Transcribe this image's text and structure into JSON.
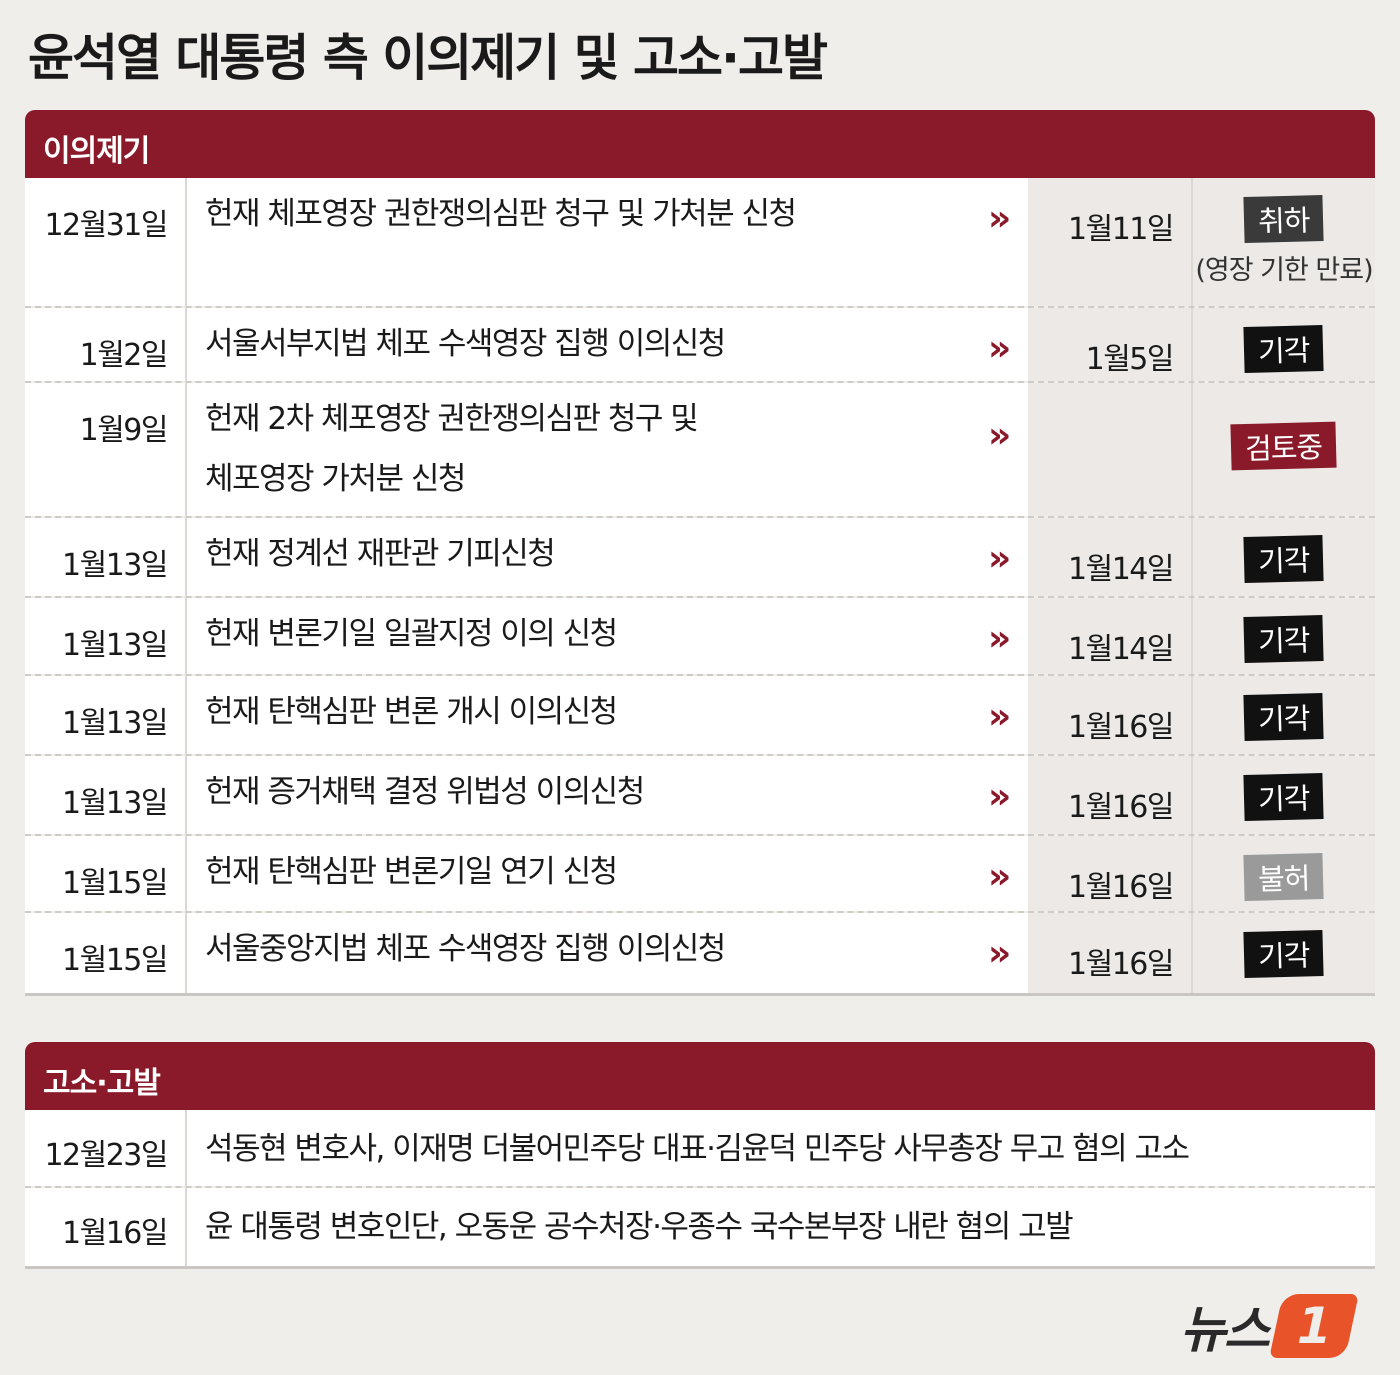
{
  "title": "윤석열 대통령 측 이의제기 및 고소·고발",
  "colors": {
    "header": "#8a1a2a",
    "badge_dismissed": "#111111",
    "badge_withdrawn": "#3a3a3a",
    "badge_review": "#8a1a2a",
    "badge_denied": "#9a9a9a",
    "logo": "#e8532a"
  },
  "objections": {
    "header": "이의제기",
    "arrow": "»",
    "rows": [
      {
        "date": "12월31일",
        "desc": [
          "헌재 체포영장 권한쟁의심판 청구 및 가처분 신청"
        ],
        "result_date": "1월11일",
        "status": "취하",
        "status_type": "withdrawn",
        "note": "(영장 기한 만료)"
      },
      {
        "date": "1월2일",
        "desc": [
          "서울서부지법 체포 수색영장 집행 이의신청"
        ],
        "result_date": "1월5일",
        "status": "기각",
        "status_type": "dismissed"
      },
      {
        "date": "1월9일",
        "desc": [
          "헌재 2차 체포영장 권한쟁의심판 청구 및",
          "체포영장 가처분 신청"
        ],
        "result_date": "",
        "status": "검토중",
        "status_type": "review"
      },
      {
        "date": "1월13일",
        "desc": [
          "헌재 정계선 재판관 기피신청"
        ],
        "result_date": "1월14일",
        "status": "기각",
        "status_type": "dismissed"
      },
      {
        "date": "1월13일",
        "desc": [
          "헌재 변론기일 일괄지정 이의 신청"
        ],
        "result_date": "1월14일",
        "status": "기각",
        "status_type": "dismissed"
      },
      {
        "date": "1월13일",
        "desc": [
          "헌재 탄핵심판 변론 개시 이의신청"
        ],
        "result_date": "1월16일",
        "status": "기각",
        "status_type": "dismissed"
      },
      {
        "date": "1월13일",
        "desc": [
          "헌재 증거채택 결정 위법성 이의신청"
        ],
        "result_date": "1월16일",
        "status": "기각",
        "status_type": "dismissed"
      },
      {
        "date": "1월15일",
        "desc": [
          "헌재 탄핵심판 변론기일 연기 신청"
        ],
        "result_date": "1월16일",
        "status": "불허",
        "status_type": "denied"
      },
      {
        "date": "1월15일",
        "desc": [
          "서울중앙지법 체포 수색영장 집행 이의신청"
        ],
        "result_date": "1월16일",
        "status": "기각",
        "status_type": "dismissed"
      }
    ]
  },
  "complaints": {
    "header": "고소·고발",
    "rows": [
      {
        "date": "12월23일",
        "desc": "석동현 변호사, 이재명 더불어민주당 대표·김윤덕 민주당 사무총장 무고 혐의 고소"
      },
      {
        "date": "1월16일",
        "desc": "윤 대통령 변호인단, 오동운 공수처장·우종수 국수본부장 내란 혐의 고발"
      }
    ]
  },
  "logo": {
    "text": "뉴스",
    "mark": "1"
  }
}
